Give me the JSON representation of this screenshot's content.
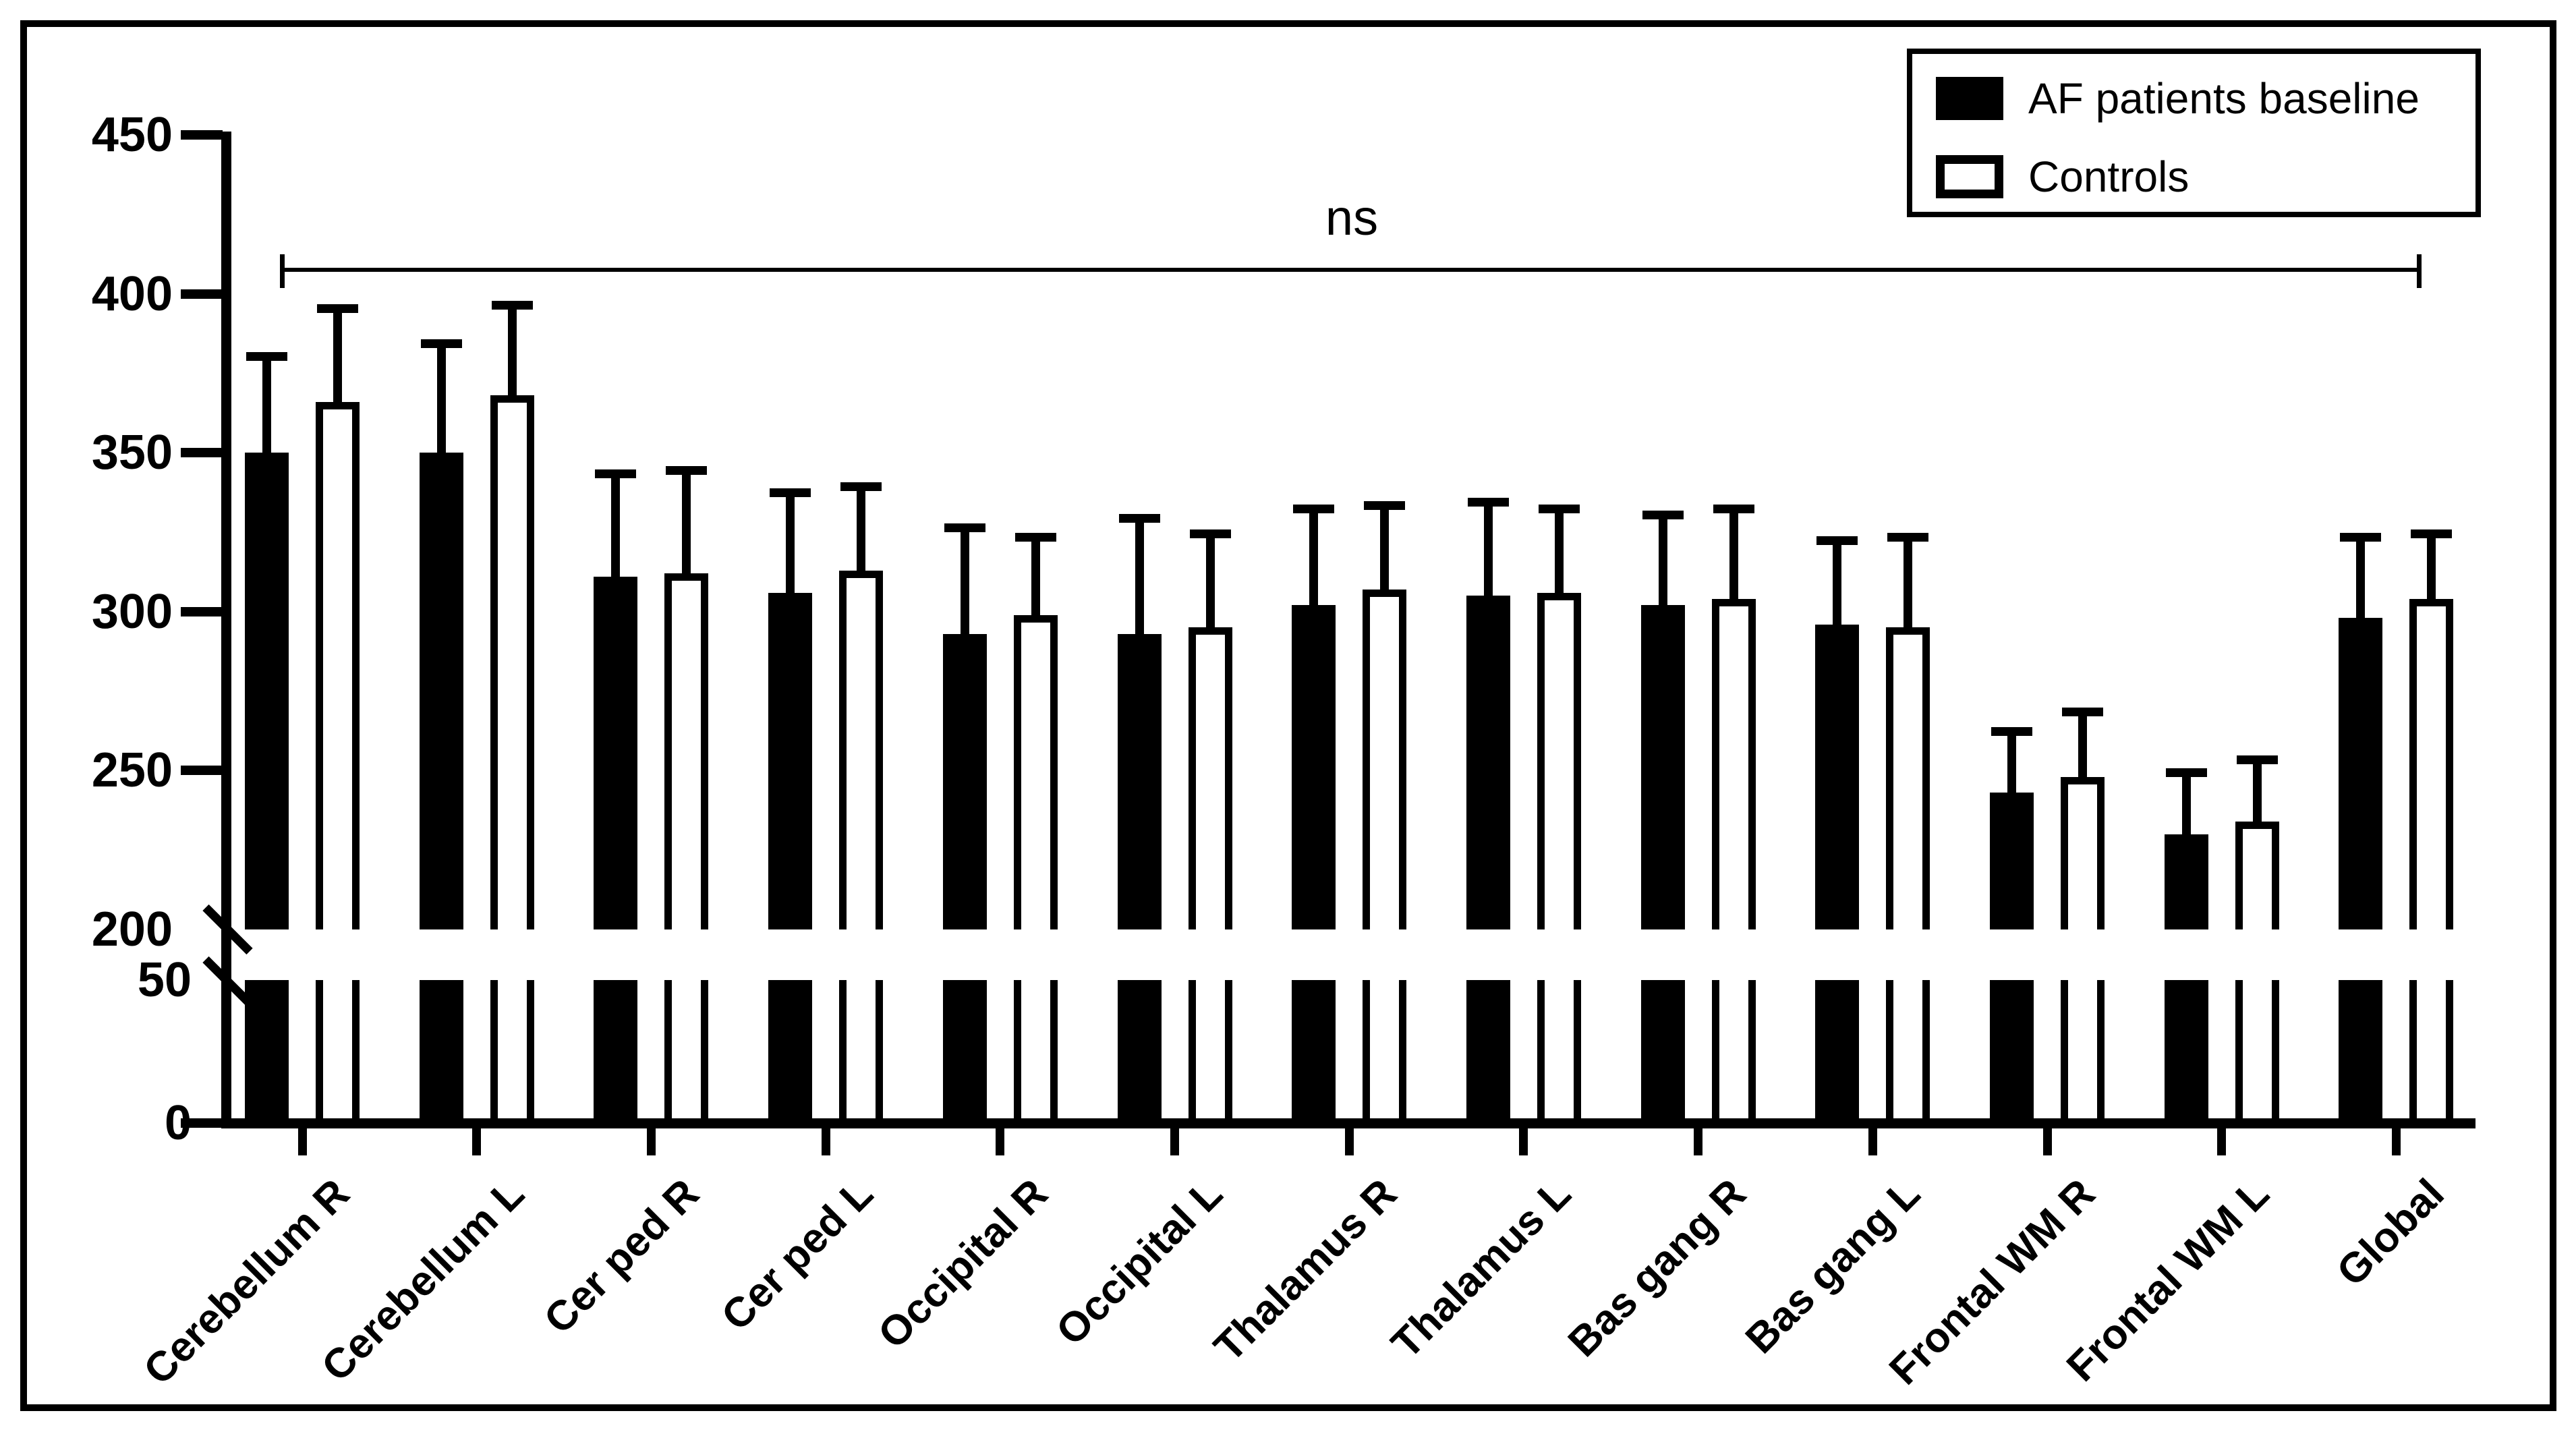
{
  "chart_data": {
    "type": "bar",
    "title": "",
    "xlabel": "",
    "ylabel": "",
    "categories": [
      "Cerebellum R",
      "Cerebellum L",
      "Cer ped R",
      "Cer ped L",
      "Occipital R",
      "Occipital L",
      "Thalamus R",
      "Thalamus L",
      "Bas gang R",
      "Bas gang L",
      "Frontal WM R",
      "Frontal WM L",
      "Global"
    ],
    "series": [
      {
        "name": "AF patients baseline",
        "fill": "#000000",
        "values": [
          350,
          350,
          311,
          306,
          293,
          293,
          302,
          305,
          302,
          296,
          243,
          230,
          298
        ],
        "error_top": [
          379,
          383,
          342,
          336,
          325,
          328,
          331,
          333,
          329,
          321,
          261,
          248,
          322
        ]
      },
      {
        "name": "Controls",
        "fill": "#ffffff",
        "values": [
          366,
          368,
          312,
          313,
          299,
          295,
          307,
          306,
          304,
          295,
          248,
          234,
          304
        ],
        "error_top": [
          394,
          395,
          343,
          338,
          322,
          323,
          332,
          331,
          331,
          322,
          267,
          252,
          323
        ]
      }
    ],
    "y_axis": {
      "ticks": [
        0,
        50,
        200,
        250,
        300,
        350,
        400,
        450
      ],
      "break_between": [
        50,
        200
      ],
      "range_lower": [
        0,
        50
      ],
      "range_upper": [
        200,
        450
      ],
      "grid": "off"
    },
    "error_bars": "upper only",
    "legend_position": "top-right",
    "annotation": {
      "text": "ns",
      "spans": "all categories"
    },
    "colors": {
      "foreground": "#000000",
      "background": "#ffffff"
    }
  }
}
